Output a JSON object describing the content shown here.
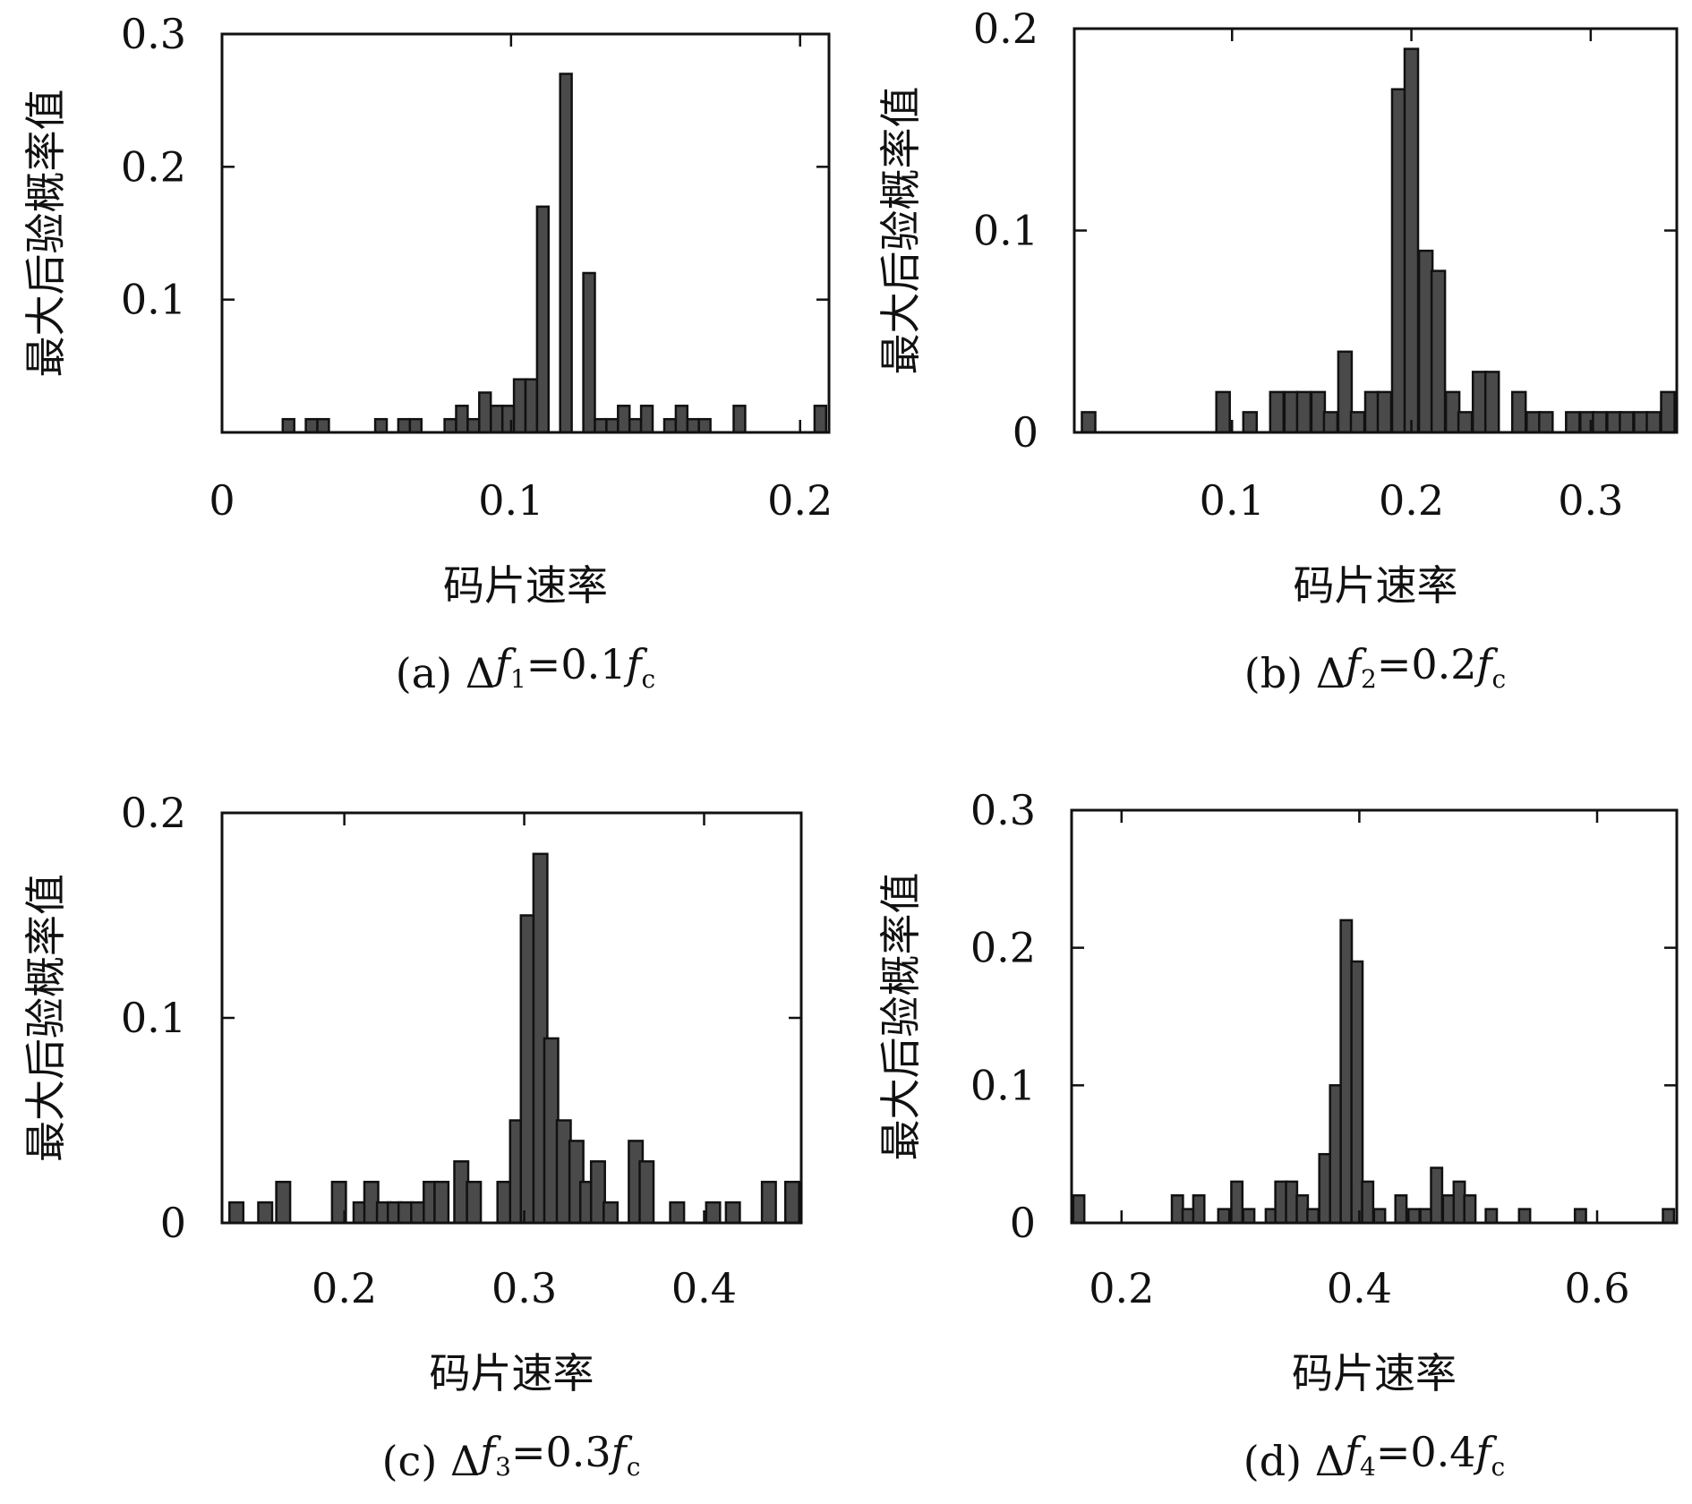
{
  "chart_data": [
    {
      "type": "bar",
      "panel_label": "(a)",
      "caption": {
        "prefix": "(a) Δ",
        "f": "f",
        "sub": "1",
        "eq": "=0.1",
        "f2": "f",
        "sub2": "c"
      },
      "xlabel": "码片速率",
      "ylabel": "最大后验概率值",
      "xlim": [
        0,
        0.21
      ],
      "ylim": [
        0,
        0.3
      ],
      "xticks": [
        0,
        0.1,
        0.2
      ],
      "xtick_labels": [
        "0",
        "0.1",
        "0.2"
      ],
      "yticks": [
        0.1,
        0.2,
        0.3
      ],
      "ytick_labels": [
        "0.1",
        "0.2",
        "0.3"
      ],
      "bin_width": 0.004,
      "x": [
        0.023,
        0.031,
        0.035,
        0.055,
        0.063,
        0.067,
        0.079,
        0.083,
        0.087,
        0.091,
        0.095,
        0.099,
        0.103,
        0.107,
        0.111,
        0.119,
        0.127,
        0.131,
        0.135,
        0.139,
        0.143,
        0.147,
        0.155,
        0.159,
        0.163,
        0.167,
        0.179,
        0.207
      ],
      "values": [
        0.01,
        0.01,
        0.01,
        0.01,
        0.01,
        0.01,
        0.01,
        0.02,
        0.01,
        0.03,
        0.02,
        0.02,
        0.04,
        0.04,
        0.17,
        0.27,
        0.12,
        0.01,
        0.01,
        0.02,
        0.01,
        0.02,
        0.01,
        0.02,
        0.01,
        0.01,
        0.02,
        0.02
      ]
    },
    {
      "type": "bar",
      "panel_label": "(b)",
      "caption": {
        "prefix": "(b) Δ",
        "f": "f",
        "sub": "2",
        "eq": "=0.2",
        "f2": "f",
        "sub2": "c"
      },
      "xlabel": "码片速率",
      "ylabel": "最大后验概率值",
      "xlim": [
        0.012,
        0.348
      ],
      "ylim": [
        0,
        0.2
      ],
      "xticks": [
        0.1,
        0.2,
        0.3
      ],
      "xtick_labels": [
        "0.1",
        "0.2",
        "0.3"
      ],
      "yticks": [
        0,
        0.1,
        0.2
      ],
      "ytick_labels": [
        "0",
        "0.1",
        "0.2"
      ],
      "bin_width": 0.0075,
      "x": [
        0.02,
        0.095,
        0.11,
        0.125,
        0.133,
        0.14,
        0.148,
        0.155,
        0.163,
        0.17,
        0.178,
        0.185,
        0.193,
        0.2,
        0.208,
        0.215,
        0.223,
        0.23,
        0.238,
        0.245,
        0.26,
        0.268,
        0.275,
        0.29,
        0.298,
        0.305,
        0.313,
        0.32,
        0.328,
        0.335,
        0.343
      ],
      "values": [
        0.01,
        0.02,
        0.01,
        0.02,
        0.02,
        0.02,
        0.02,
        0.01,
        0.04,
        0.01,
        0.02,
        0.02,
        0.17,
        0.19,
        0.09,
        0.08,
        0.02,
        0.01,
        0.03,
        0.03,
        0.02,
        0.01,
        0.01,
        0.01,
        0.01,
        0.01,
        0.01,
        0.01,
        0.01,
        0.01,
        0.02
      ]
    },
    {
      "type": "bar",
      "panel_label": "(c)",
      "caption": {
        "prefix": "(c) Δ",
        "f": "f",
        "sub": "3",
        "eq": "=0.3",
        "f2": "f",
        "sub2": "c"
      },
      "xlabel": "码片速率",
      "ylabel": "最大后验概率值",
      "xlim": [
        0.132,
        0.454
      ],
      "ylim": [
        0,
        0.2
      ],
      "xticks": [
        0.2,
        0.3,
        0.4
      ],
      "xtick_labels": [
        "0.2",
        "0.3",
        "0.4"
      ],
      "yticks": [
        0,
        0.1,
        0.2
      ],
      "ytick_labels": [
        "0",
        "0.1",
        "0.2"
      ],
      "bin_width": 0.0077,
      "x": [
        0.14,
        0.156,
        0.166,
        0.197,
        0.209,
        0.215,
        0.222,
        0.228,
        0.234,
        0.241,
        0.248,
        0.254,
        0.265,
        0.272,
        0.289,
        0.296,
        0.302,
        0.309,
        0.315,
        0.322,
        0.329,
        0.335,
        0.341,
        0.348,
        0.362,
        0.368,
        0.385,
        0.405,
        0.416,
        0.436,
        0.449
      ],
      "values": [
        0.01,
        0.01,
        0.02,
        0.02,
        0.01,
        0.02,
        0.01,
        0.01,
        0.01,
        0.01,
        0.02,
        0.02,
        0.03,
        0.02,
        0.02,
        0.05,
        0.15,
        0.18,
        0.09,
        0.05,
        0.04,
        0.02,
        0.03,
        0.01,
        0.04,
        0.03,
        0.01,
        0.01,
        0.01,
        0.02,
        0.02
      ]
    },
    {
      "type": "bar",
      "panel_label": "(d)",
      "caption": {
        "prefix": "(d) Δ",
        "f": "f",
        "sub": "4",
        "eq": "=0.4",
        "f2": "f",
        "sub2": "c"
      },
      "xlabel": "码片速率",
      "ylabel": "最大后验概率值",
      "xlim": [
        0.158,
        0.667
      ],
      "ylim": [
        0,
        0.3
      ],
      "xticks": [
        0.2,
        0.4,
        0.6
      ],
      "xtick_labels": [
        "0.2",
        "0.4",
        "0.6"
      ],
      "yticks": [
        0,
        0.1,
        0.2,
        0.3
      ],
      "ytick_labels": [
        "0",
        "0.1",
        "0.2",
        "0.3"
      ],
      "bin_width": 0.0093,
      "x": [
        0.164,
        0.247,
        0.256,
        0.265,
        0.286,
        0.297,
        0.307,
        0.326,
        0.334,
        0.343,
        0.352,
        0.361,
        0.371,
        0.38,
        0.389,
        0.398,
        0.407,
        0.417,
        0.435,
        0.446,
        0.456,
        0.465,
        0.475,
        0.484,
        0.493,
        0.511,
        0.539,
        0.586,
        0.66
      ],
      "values": [
        0.02,
        0.02,
        0.01,
        0.02,
        0.01,
        0.03,
        0.01,
        0.01,
        0.03,
        0.03,
        0.02,
        0.01,
        0.05,
        0.1,
        0.22,
        0.19,
        0.03,
        0.01,
        0.02,
        0.01,
        0.01,
        0.04,
        0.02,
        0.03,
        0.02,
        0.01,
        0.01,
        0.01,
        0.01
      ]
    }
  ]
}
